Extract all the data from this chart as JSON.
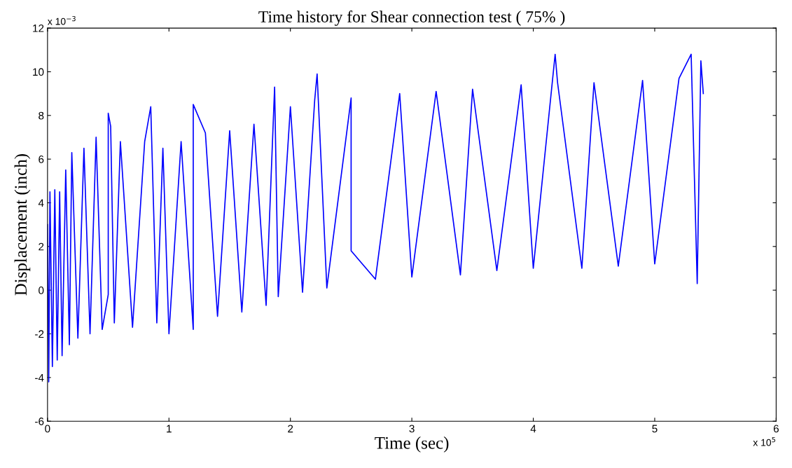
{
  "chart_data": {
    "type": "line",
    "title": "Time history for Shear connection test ( 75% )",
    "xlabel": "Time (sec)",
    "ylabel": "Displacement (inch)",
    "annotations": [
      "x 10$^{−3}$",
      "x 10$^{5}$"
    ],
    "series": [
      {
        "color": "#0000ff",
        "x": [
          0,
          0.01,
          0.02,
          0.04,
          0.06,
          0.08,
          0.1,
          0.12,
          0.15,
          0.18,
          0.2,
          0.25,
          0.3,
          0.35,
          0.4,
          0.45,
          0.5,
          0.5,
          0.52,
          0.55,
          0.6,
          0.7,
          0.8,
          0.85,
          0.9,
          0.95,
          1.0,
          1.1,
          1.2,
          1.2,
          1.3,
          1.4,
          1.5,
          1.6,
          1.7,
          1.8,
          1.87,
          1.9,
          2.0,
          2.1,
          2.2,
          2.22,
          2.3,
          2.5,
          2.5,
          2.7,
          2.9,
          3.0,
          3.2,
          3.4,
          3.5,
          3.7,
          3.9,
          4.0,
          4.18,
          4.2,
          4.4,
          4.5,
          4.7,
          4.9,
          5.0,
          5.2,
          5.3,
          5.35,
          5.38,
          5.4
        ],
        "values": [
          3,
          -4.2,
          4.5,
          -3.5,
          4.6,
          -3.2,
          4.5,
          -3,
          5.5,
          -2.5,
          6.3,
          -2.2,
          6.5,
          -2,
          7,
          -1.8,
          -0.2,
          8.1,
          7.5,
          -1.5,
          6.8,
          -1.7,
          6.8,
          8.4,
          -1.5,
          6.5,
          -2,
          6.8,
          -1.8,
          8.5,
          7.2,
          -1.2,
          7.3,
          -1,
          7.6,
          -0.7,
          9.3,
          -0.3,
          8.4,
          -0.1,
          8.7,
          9.9,
          0.1,
          8.8,
          1.8,
          0.5,
          9,
          0.6,
          9.1,
          0.7,
          9.2,
          0.9,
          9.4,
          1.0,
          10.8,
          9.5,
          1.0,
          9.5,
          1.1,
          9.6,
          1.2,
          9.7,
          10.8,
          0.3,
          10.5,
          9
        ]
      }
    ],
    "xlim": [
      0,
      6
    ],
    "xticks": [
      0,
      1,
      2,
      3,
      4,
      5,
      6
    ],
    "ylim": [
      -6,
      12
    ],
    "yticks": [
      -6,
      -4,
      -2,
      0,
      2,
      4,
      6,
      8,
      10,
      12
    ],
    "grid": false,
    "legend": false,
    "marker": "none",
    "line_style": "solid"
  }
}
